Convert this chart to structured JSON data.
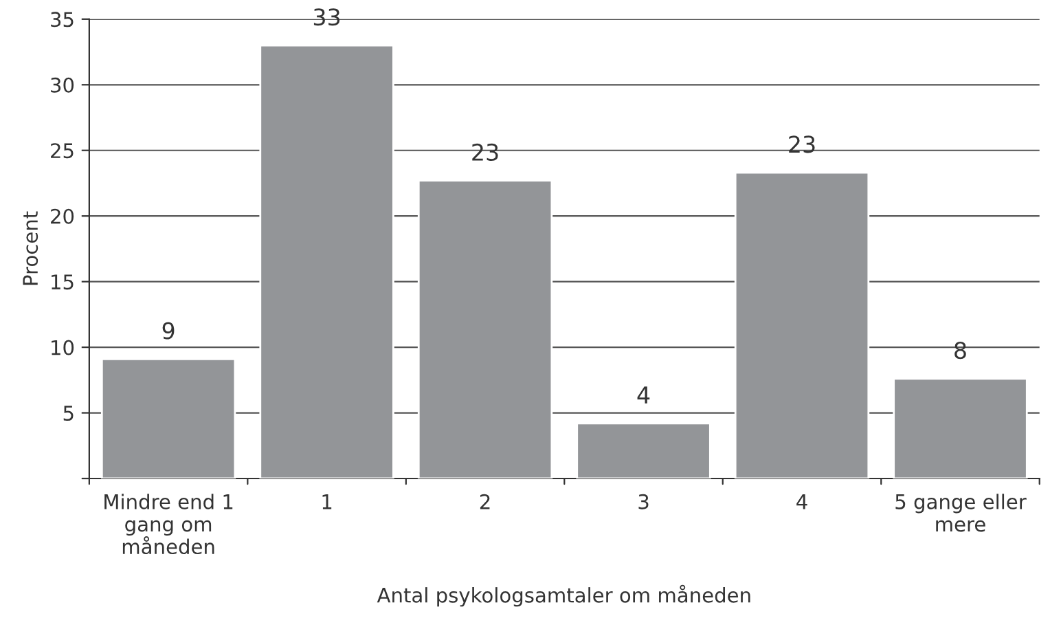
{
  "chart_data": {
    "type": "bar",
    "categories": [
      "Mindre end 1\ngang om\nmåneden",
      "1",
      "2",
      "3",
      "4",
      "5 gange eller\nmere"
    ],
    "values": [
      9.1,
      33.0,
      22.7,
      4.2,
      23.3,
      7.6
    ],
    "value_labels": [
      "9",
      "33",
      "23",
      "4",
      "23",
      "8"
    ],
    "color": "#939598",
    "xlabel": "Antal psykologsamtaler om måneden",
    "ylabel": "Procent",
    "ylim": [
      0,
      35
    ],
    "yticks": [
      {
        "value": 0,
        "label": null
      },
      5,
      10,
      15,
      20,
      25,
      30,
      35
    ],
    "grid": "y"
  }
}
